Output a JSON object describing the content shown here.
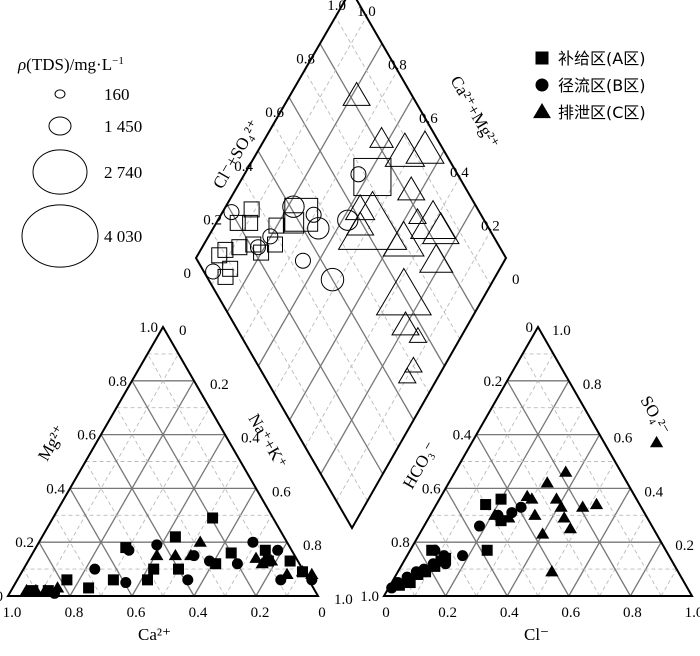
{
  "size_legend": {
    "title": "ρ(TDS)/mg·L⁻¹",
    "title_rho": "ρ",
    "title_rest": "(TDS)/mg·L",
    "title_exp": "−1",
    "items": [
      {
        "label": "160",
        "value": 160
      },
      {
        "label": "1 450",
        "value": 1450
      },
      {
        "label": "2 740",
        "value": 2740
      },
      {
        "label": "4 030",
        "value": 4030
      }
    ]
  },
  "zone_legend": [
    {
      "label": "补给区(A区)",
      "marker": "square"
    },
    {
      "label": "径流区(B区)",
      "marker": "circle"
    },
    {
      "label": "排泄区(C区)",
      "marker": "triangle"
    }
  ],
  "chart_data": {
    "type": "scatter",
    "subtype": "piper-diagram",
    "cation_triangle": {
      "bottom_label": "Ca²⁺",
      "left_label": "Mg²⁺",
      "right_label": "Na⁺+K⁺",
      "bottom_ticks": [
        "1.0",
        "0.8",
        "0.6",
        "0.4",
        "0.2",
        "0"
      ],
      "left_ticks": [
        "0",
        "0.2",
        "0.4",
        "0.6",
        "0.8",
        "1.0"
      ],
      "right_ticks": [
        "0",
        "0.2",
        "0.4",
        "0.6",
        "0.8",
        "1.0"
      ],
      "points": {
        "square": [
          [
            0.05,
            0.09
          ],
          [
            0.09,
            0.13
          ],
          [
            0.16,
            0.13
          ],
          [
            0.17,
            0.17
          ],
          [
            0.28,
            0.16
          ],
          [
            0.33,
            0.12
          ],
          [
            0.34,
            0.29
          ],
          [
            0.45,
            0.1
          ],
          [
            0.46,
            0.22
          ],
          [
            0.53,
            0.1
          ],
          [
            0.55,
            0.06
          ],
          [
            0.62,
            0.18
          ],
          [
            0.66,
            0.06
          ],
          [
            0.74,
            0.03
          ],
          [
            0.81,
            0.06
          ],
          [
            0.87,
            0.02
          ],
          [
            0.92,
            0.02
          ]
        ],
        "circle": [
          [
            0.02,
            0.06
          ],
          [
            0.12,
            0.06
          ],
          [
            0.13,
            0.17
          ],
          [
            0.21,
            0.2
          ],
          [
            0.26,
            0.12
          ],
          [
            0.35,
            0.13
          ],
          [
            0.4,
            0.15
          ],
          [
            0.42,
            0.06
          ],
          [
            0.52,
            0.19
          ],
          [
            0.61,
            0.17
          ],
          [
            0.62,
            0.05
          ],
          [
            0.72,
            0.1
          ],
          [
            0.85,
            0.01
          ]
        ],
        "triangle": [
          [
            0.02,
            0.08
          ],
          [
            0.05,
            0.09
          ],
          [
            0.1,
            0.08
          ],
          [
            0.15,
            0.13
          ],
          [
            0.18,
            0.12
          ],
          [
            0.2,
            0.14
          ],
          [
            0.38,
            0.2
          ],
          [
            0.41,
            0.15
          ],
          [
            0.46,
            0.15
          ],
          [
            0.52,
            0.15
          ],
          [
            0.84,
            0.03
          ],
          [
            0.88,
            0.02
          ],
          [
            0.91,
            0.02
          ],
          [
            0.94,
            0.02
          ]
        ]
      }
    },
    "anion_triangle": {
      "bottom_label": "Cl⁻",
      "left_label": "HCO₃⁻",
      "right_label": "SO₄²⁻",
      "bottom_ticks": [
        "0",
        "0.2",
        "0.4",
        "0.6",
        "0.8",
        "1.0"
      ],
      "left_ticks": [
        "1.0",
        "0.8",
        "0.6",
        "0.4",
        "0.2",
        "0"
      ],
      "right_ticks": [
        "1.0",
        "0.8",
        "0.6",
        "0.4",
        "0.2",
        "0"
      ],
      "points": {
        "square": [
          [
            0.03,
            0.04
          ],
          [
            0.05,
            0.06
          ],
          [
            0.07,
            0.08
          ],
          [
            0.09,
            0.09
          ],
          [
            0.11,
            0.11
          ],
          [
            0.12,
            0.13
          ],
          [
            0.13,
            0.14
          ],
          [
            0.06,
            0.05
          ],
          [
            0.16,
            0.34
          ],
          [
            0.2,
            0.36
          ],
          [
            0.25,
            0.17
          ],
          [
            0.07,
            0.17
          ],
          [
            0.24,
            0.28
          ]
        ],
        "circle": [
          [
            0.01,
            0.03
          ],
          [
            0.02,
            0.05
          ],
          [
            0.04,
            0.07
          ],
          [
            0.06,
            0.09
          ],
          [
            0.08,
            0.1
          ],
          [
            0.1,
            0.12
          ],
          [
            0.12,
            0.15
          ],
          [
            0.14,
            0.12
          ],
          [
            0.08,
            0.17
          ],
          [
            0.18,
            0.26
          ],
          [
            0.22,
            0.3
          ],
          [
            0.26,
            0.31
          ],
          [
            0.28,
            0.33
          ],
          [
            0.18,
            0.15
          ]
        ],
        "triangle": [
          [
            0.21,
            0.3
          ],
          [
            0.26,
            0.29
          ],
          [
            0.28,
            0.37
          ],
          [
            0.34,
            0.3
          ],
          [
            0.4,
            0.23
          ],
          [
            0.44,
            0.29
          ],
          [
            0.41,
            0.33
          ],
          [
            0.48,
            0.33
          ],
          [
            0.5,
            0.09
          ],
          [
            0.38,
            0.36
          ],
          [
            0.3,
            0.36
          ],
          [
            0.36,
            0.46
          ],
          [
            0.32,
            0.42
          ],
          [
            0.6,
            0.57
          ],
          [
            0.52,
            0.34
          ],
          [
            0.48,
            0.25
          ]
        ]
      }
    },
    "diamond": {
      "upper_left_label": "Cl⁻+SO₄²⁺",
      "upper_right_label": "Ca²⁺+Mg²⁺",
      "upper_left_ticks": [
        "0",
        "0.2",
        "0.4",
        "0.6",
        "0.8",
        "1.0"
      ],
      "upper_right_ticks": [
        "1.0",
        "0.8",
        "0.6",
        "0.4",
        "0.2",
        "0"
      ],
      "points_scaled_by_tds": [
        {
          "s": 0.42,
          "c": 0.74,
          "tds": 1100,
          "marker": "square"
        },
        {
          "s": 0.72,
          "c": 0.58,
          "tds": 1450,
          "marker": "square"
        },
        {
          "s": 0.06,
          "c": 0.87,
          "tds": 160,
          "marker": "square"
        },
        {
          "s": 0.09,
          "c": 0.87,
          "tds": 160,
          "marker": "square"
        },
        {
          "s": 0.11,
          "c": 0.92,
          "tds": 160,
          "marker": "square"
        },
        {
          "s": 0.16,
          "c": 0.88,
          "tds": 160,
          "marker": "square"
        },
        {
          "s": 0.08,
          "c": 0.93,
          "tds": 160,
          "marker": "square"
        },
        {
          "s": 0.2,
          "c": 0.93,
          "tds": 160,
          "marker": "square"
        },
        {
          "s": 0.22,
          "c": 0.8,
          "tds": 160,
          "marker": "square"
        },
        {
          "s": 0.24,
          "c": 0.89,
          "tds": 160,
          "marker": "square"
        },
        {
          "s": 0.27,
          "c": 0.91,
          "tds": 160,
          "marker": "square"
        },
        {
          "s": 0.21,
          "c": 0.84,
          "tds": 160,
          "marker": "square"
        },
        {
          "s": 0.38,
          "c": 0.75,
          "tds": 350,
          "marker": "square"
        },
        {
          "s": 0.28,
          "c": 0.77,
          "tds": 160,
          "marker": "square"
        },
        {
          "s": 0.32,
          "c": 0.8,
          "tds": 160,
          "marker": "square"
        },
        {
          "s": 0.2,
          "c": 0.97,
          "tds": 160,
          "marker": "circle"
        },
        {
          "s": 0.03,
          "c": 0.92,
          "tds": 160,
          "marker": "circle"
        },
        {
          "s": 0.22,
          "c": 0.82,
          "tds": 160,
          "marker": "circle"
        },
        {
          "s": 0.28,
          "c": 0.8,
          "tds": 160,
          "marker": "circle"
        },
        {
          "s": 0.45,
          "c": 0.66,
          "tds": 400,
          "marker": "circle"
        },
        {
          "s": 0.41,
          "c": 0.78,
          "tds": 400,
          "marker": "circle"
        },
        {
          "s": 0.34,
          "c": 0.65,
          "tds": 160,
          "marker": "circle"
        },
        {
          "s": 0.4,
          "c": 0.52,
          "tds": 450,
          "marker": "circle"
        },
        {
          "s": 0.56,
          "c": 0.58,
          "tds": 350,
          "marker": "circle"
        },
        {
          "s": 0.68,
          "c": 0.63,
          "tds": 160,
          "marker": "circle"
        },
        {
          "s": 0.46,
          "c": 0.7,
          "tds": 160,
          "marker": "circle"
        },
        {
          "s": 0.82,
          "c": 0.78,
          "tds": 500,
          "marker": "triangle"
        },
        {
          "s": 0.62,
          "c": 0.56,
          "tds": 600,
          "marker": "triangle"
        },
        {
          "s": 0.59,
          "c": 0.53,
          "tds": 500,
          "marker": "triangle"
        },
        {
          "s": 0.79,
          "c": 0.36,
          "tds": 160,
          "marker": "triangle"
        },
        {
          "s": 0.63,
          "c": 0.49,
          "tds": 4030,
          "marker": "triangle"
        },
        {
          "s": 0.87,
          "c": 0.52,
          "tds": 1200,
          "marker": "triangle"
        },
        {
          "s": 0.7,
          "c": 0.36,
          "tds": 1300,
          "marker": "triangle"
        },
        {
          "s": 0.82,
          "c": 0.43,
          "tds": 500,
          "marker": "triangle"
        },
        {
          "s": 0.94,
          "c": 0.46,
          "tds": 1100,
          "marker": "triangle"
        },
        {
          "s": 0.83,
          "c": 0.3,
          "tds": 1600,
          "marker": "triangle"
        },
        {
          "s": 0.84,
          "c": 0.26,
          "tds": 1000,
          "marker": "triangle"
        },
        {
          "s": 0.77,
          "c": 0.22,
          "tds": 800,
          "marker": "triangle"
        },
        {
          "s": 0.82,
          "c": 0.62,
          "tds": 350,
          "marker": "triangle"
        },
        {
          "s": 0.6,
          "c": 0.26,
          "tds": 2500,
          "marker": "triangle"
        },
        {
          "s": 0.55,
          "c": 0.2,
          "tds": 500,
          "marker": "triangle"
        },
        {
          "s": 0.57,
          "c": 0.14,
          "tds": 160,
          "marker": "triangle"
        },
        {
          "s": 0.5,
          "c": 0.1,
          "tds": 160,
          "marker": "triangle"
        },
        {
          "s": 0.46,
          "c": 0.1,
          "tds": 160,
          "marker": "triangle"
        }
      ]
    }
  }
}
